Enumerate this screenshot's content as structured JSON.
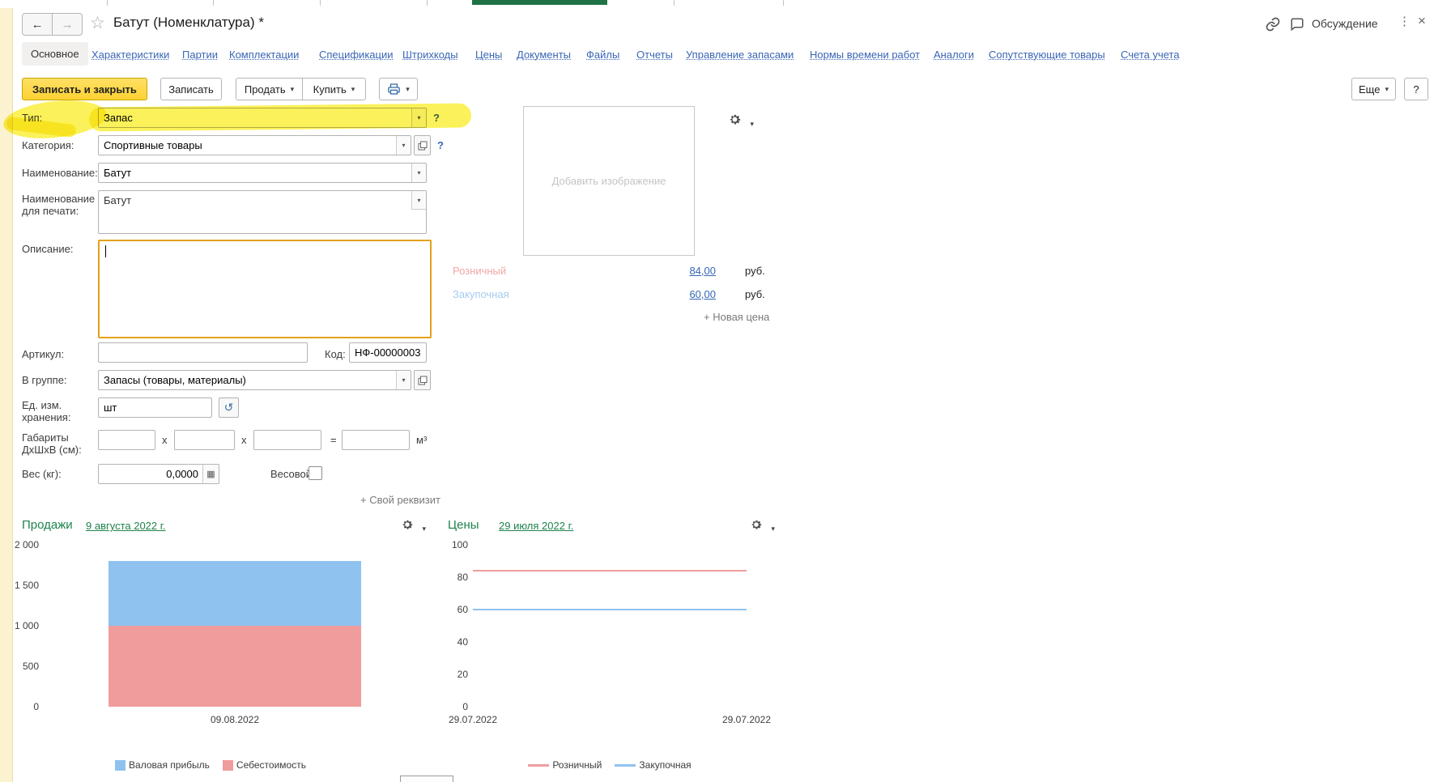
{
  "window": {
    "title": "Батут (Номенклатура) *",
    "discussion": "Обсуждение",
    "menu_dots": "⋮",
    "close": "×",
    "back": "←",
    "forward": "→",
    "star": "☆"
  },
  "tabs": {
    "items": [
      {
        "label": "Основное"
      },
      {
        "label": "Характеристики"
      },
      {
        "label": "Партии"
      },
      {
        "label": "Комплектации"
      },
      {
        "label": "Спецификации"
      },
      {
        "label": "Штрихкоды"
      },
      {
        "label": "Цены"
      },
      {
        "label": "Документы"
      },
      {
        "label": "Файлы"
      },
      {
        "label": "Отчеты"
      },
      {
        "label": "Управление запасами"
      },
      {
        "label": "Нормы времени работ"
      },
      {
        "label": "Аналоги"
      },
      {
        "label": "Сопутствующие товары"
      },
      {
        "label": "Счета учета"
      }
    ]
  },
  "toolbar": {
    "save_close": "Записать и закрыть",
    "save": "Записать",
    "sell": "Продать",
    "buy": "Купить",
    "more": "Еще",
    "help": "?"
  },
  "form": {
    "type": {
      "label": "Тип:",
      "value": "Запас",
      "help": "?"
    },
    "category": {
      "label": "Категория:",
      "value": "Спортивные товары",
      "help": "?"
    },
    "name": {
      "label": "Наименование:",
      "value": "Батут"
    },
    "print_name": {
      "label": "Наименование для печати:",
      "value": "Батут"
    },
    "description": {
      "label": "Описание:",
      "value": ""
    },
    "sku": {
      "label": "Артикул:",
      "value": ""
    },
    "code": {
      "label": "Код:",
      "value": "НФ-00000003"
    },
    "group": {
      "label": "В группе:",
      "value": "Запасы (товары, материалы)"
    },
    "unit": {
      "label": "Ед. изм. хранения:",
      "value": "шт"
    },
    "dimensions": {
      "label": "Габариты ДхШхВ (см):",
      "op1": "x",
      "op2": "x",
      "eq": "=",
      "unit": "м³"
    },
    "weight": {
      "label": "Вес (кг):",
      "value": "0,0000"
    },
    "weighted": {
      "label": "Весовой:"
    },
    "custom_attr": "+ Свой реквизит"
  },
  "image_placeholder": "Добавить изображение",
  "prices": {
    "rows": [
      {
        "label": "Розничный",
        "value": "84,00",
        "currency": "руб.",
        "label_color": "#efa6a6"
      },
      {
        "label": "Закупочная",
        "value": "60,00",
        "currency": "руб.",
        "label_color": "#a6cbee"
      }
    ],
    "new_price": "+ Новая цена"
  },
  "chart_data": [
    {
      "type": "bar",
      "stacked": true,
      "title": "Продажи",
      "date_link": "9 августа 2022 г.",
      "categories": [
        "09.08.2022"
      ],
      "series": [
        {
          "name": "Валовая прибыль",
          "values": [
            800
          ],
          "color": "#8fc2ef"
        },
        {
          "name": "Себестоимость",
          "values": [
            1000
          ],
          "color": "#f09c9c"
        }
      ],
      "ylim": [
        0,
        2000
      ],
      "yticks": [
        0,
        500,
        1000,
        1500,
        2000
      ],
      "ytick_labels": [
        "0",
        "500",
        "1 000",
        "1 500",
        "2 000"
      ],
      "legend_position": "bottom",
      "grid": false
    },
    {
      "type": "line",
      "title": "Цены",
      "date_link": "29 июля 2022 г.",
      "x_labels": [
        "29.07.2022",
        "29.07.2022"
      ],
      "series": [
        {
          "name": "Розничный",
          "values": [
            84,
            84
          ],
          "color": "#ef9e9e"
        },
        {
          "name": "Закупочная",
          "values": [
            60,
            60
          ],
          "color": "#8fc2ef"
        }
      ],
      "ylim": [
        0,
        100
      ],
      "yticks": [
        0,
        20,
        40,
        60,
        80,
        100
      ],
      "ytick_labels": [
        "0",
        "20",
        "40",
        "60",
        "80",
        "100"
      ],
      "legend_position": "bottom",
      "grid": false
    }
  ]
}
